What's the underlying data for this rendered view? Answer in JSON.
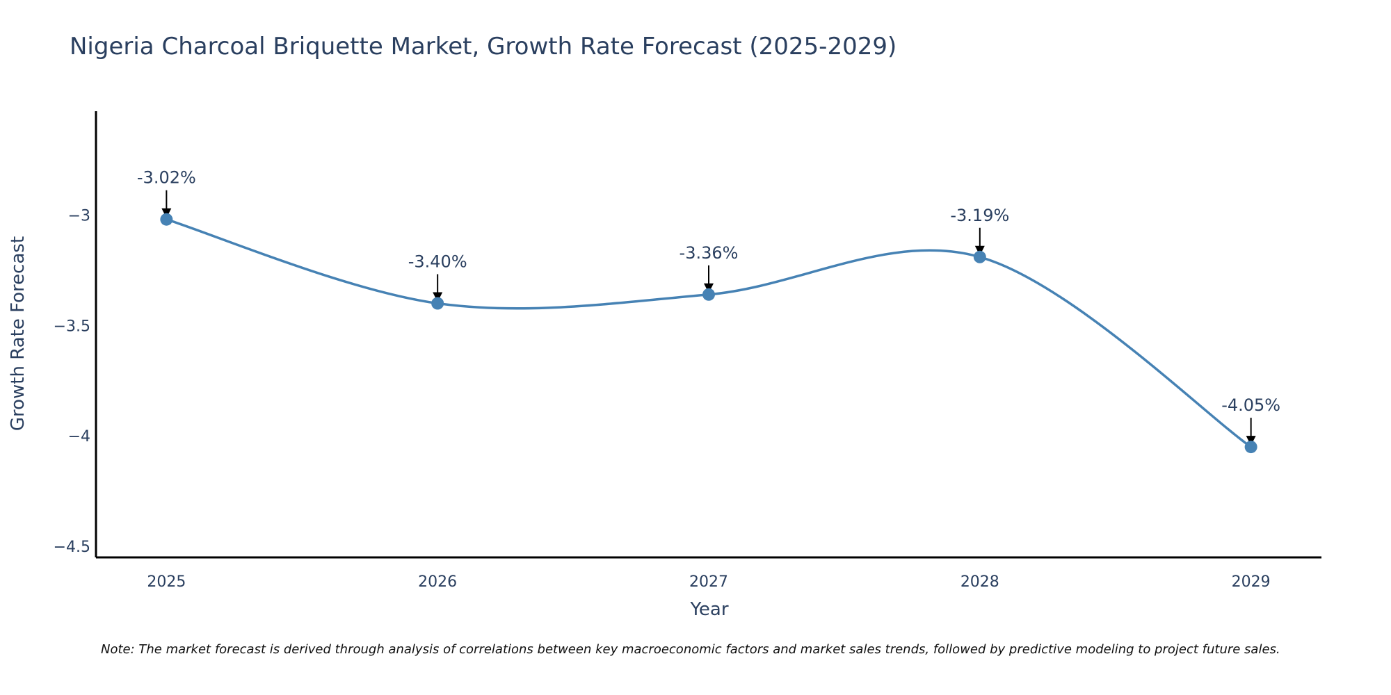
{
  "chart_data": {
    "type": "line",
    "title": "Nigeria Charcoal Briquette Market, Growth Rate Forecast (2025-2029)",
    "xlabel": "Year",
    "ylabel": "Growth Rate Forecast",
    "categories": [
      "2025",
      "2026",
      "2027",
      "2028",
      "2029"
    ],
    "x": [
      2025,
      2026,
      2027,
      2028,
      2029
    ],
    "values": [
      -3.02,
      -3.4,
      -3.36,
      -3.19,
      -4.05
    ],
    "labels": [
      "-3.02%",
      "-3.40%",
      "-3.36%",
      "-3.19%",
      "-4.05%"
    ],
    "x_ticks": [
      "2025",
      "2026",
      "2027",
      "2028",
      "2029"
    ],
    "y_ticks": [
      -3,
      -3.5,
      -4,
      -4.5
    ],
    "y_tick_labels": [
      "−3",
      "−3.5",
      "−4",
      "−4.5"
    ],
    "ylim": [
      -4.55,
      -2.53
    ],
    "xlim": [
      2024.74,
      2029.26
    ],
    "grid": false,
    "line_shape": "spline",
    "annotations": "arrow pointing to each data point with value label",
    "note": "Note: The market forecast is derived through analysis of correlations between key macroeconomic factors and market sales trends, followed by predictive modeling to project future sales."
  },
  "colors": {
    "line": "#4682b4",
    "marker": "#4682b4",
    "text": "#2a3f5f",
    "axis": "#000000",
    "arrow": "#000000",
    "background": "#ffffff"
  }
}
